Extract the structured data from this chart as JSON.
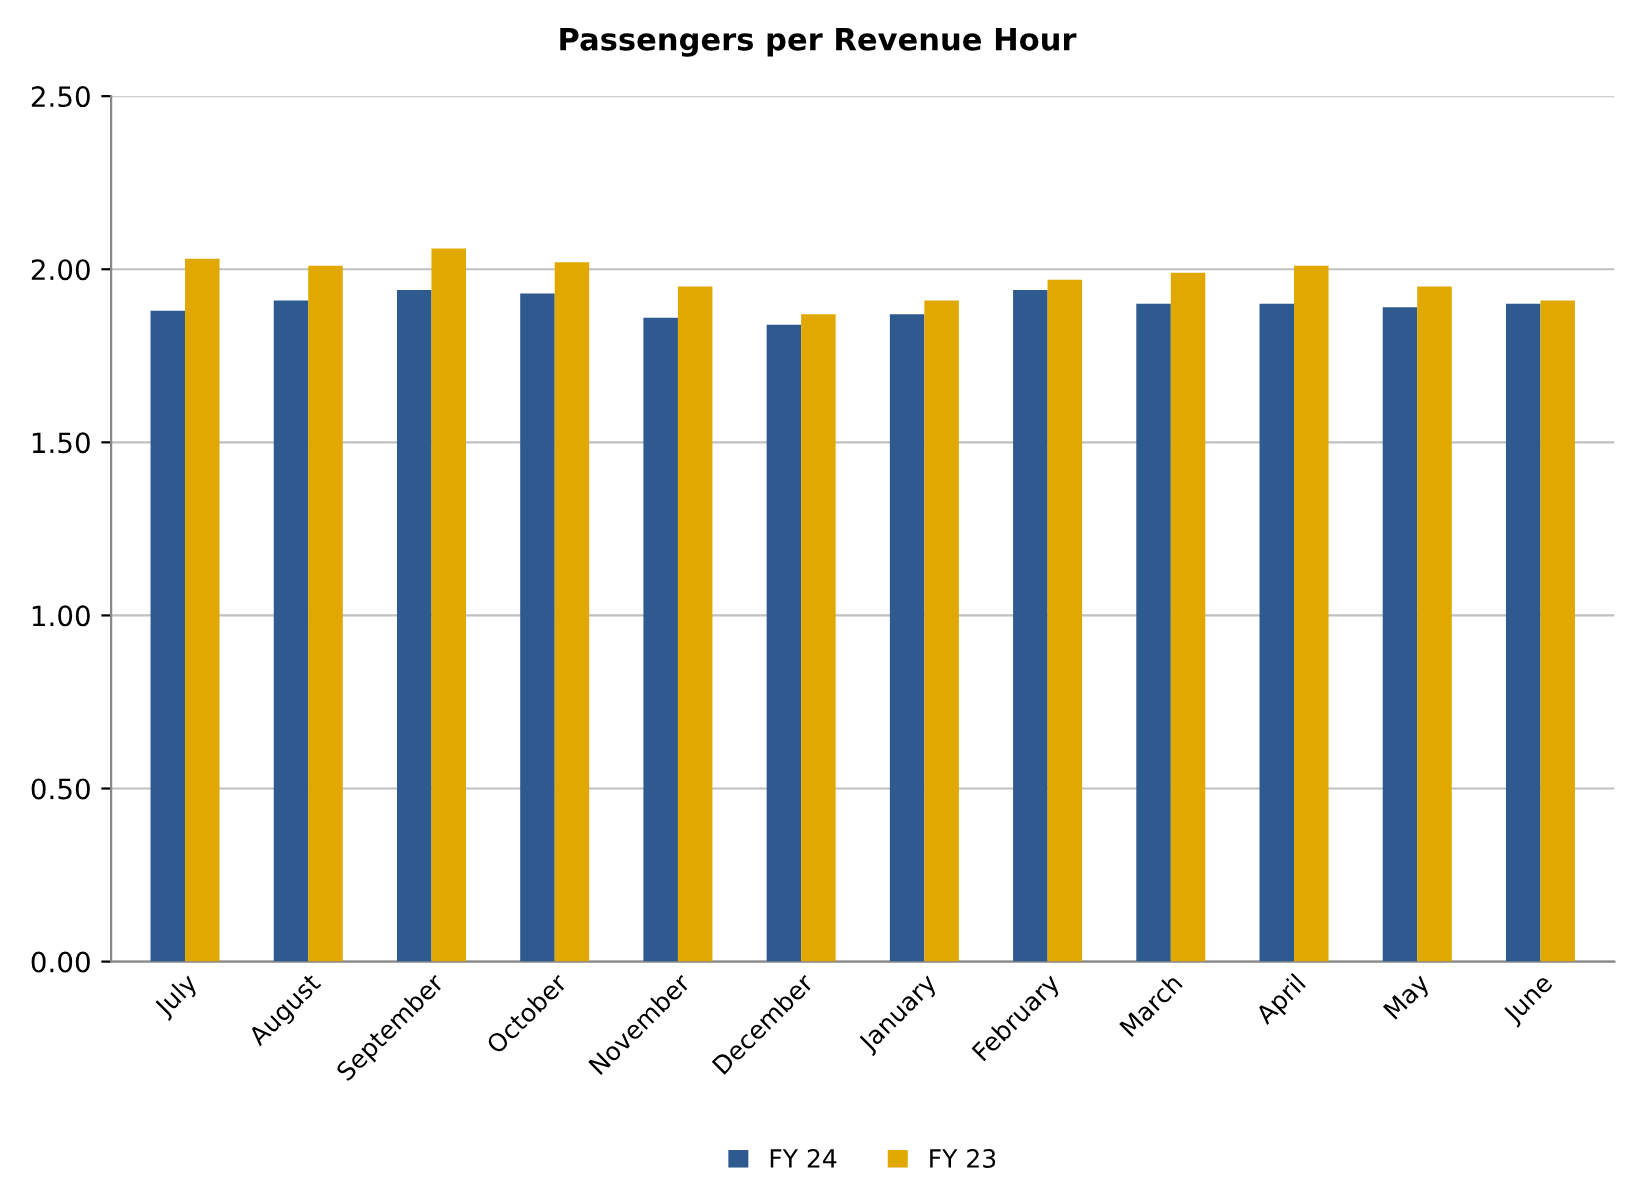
{
  "chart_data": {
    "type": "bar",
    "title": "Passengers per Revenue Hour",
    "categories": [
      "July",
      "August",
      "September",
      "October",
      "November",
      "December",
      "January",
      "February",
      "March",
      "April",
      "May",
      "June"
    ],
    "series": [
      {
        "name": "FY 24",
        "color": "#2f5a8f",
        "values": [
          1.88,
          1.91,
          1.94,
          1.93,
          1.86,
          1.84,
          1.87,
          1.94,
          1.9,
          1.9,
          1.89,
          1.9
        ]
      },
      {
        "name": "FY 23",
        "color": "#e0a800",
        "values": [
          2.03,
          2.01,
          2.06,
          2.02,
          1.95,
          1.87,
          1.91,
          1.97,
          1.99,
          2.01,
          1.95,
          1.91
        ]
      }
    ],
    "ylim": [
      0,
      2.5
    ],
    "yticks": [
      {
        "value": 0,
        "label": "0.00"
      },
      {
        "value": 0.5,
        "label": "0.50"
      },
      {
        "value": 1.0,
        "label": "1.00"
      },
      {
        "value": 1.5,
        "label": "1.50"
      },
      {
        "value": 2.0,
        "label": "2.00"
      },
      {
        "value": 2.5,
        "label": "2.50"
      }
    ],
    "grid": "y",
    "legend": "bottom"
  }
}
